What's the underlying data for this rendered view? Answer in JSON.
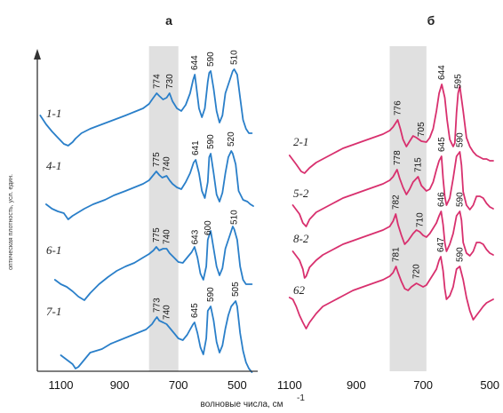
{
  "figure": {
    "xlabel": "волновые числа, см",
    "xlabel_sup": "-1",
    "ylabel": "оптическая плотность, усл. един."
  },
  "chart_data": [
    {
      "type": "line",
      "panel_label": "а",
      "color": "#2a7fc9",
      "band": "#e0e0e0",
      "xlim": [
        1180,
        430
      ],
      "xticks": [
        1100,
        900,
        700,
        500
      ],
      "shaded_region": [
        800,
        700
      ],
      "series": [
        {
          "name": "1-1",
          "offset": 0,
          "x": [
            1170,
            1150,
            1130,
            1110,
            1090,
            1075,
            1060,
            1050,
            1030,
            1000,
            960,
            920,
            880,
            850,
            820,
            800,
            785,
            774,
            765,
            752,
            740,
            730,
            720,
            705,
            690,
            675,
            660,
            650,
            644,
            640,
            630,
            620,
            610,
            600,
            595,
            590,
            580,
            570,
            560,
            550,
            540,
            525,
            515,
            510,
            500,
            490,
            480,
            470,
            460,
            450
          ],
          "y": [
            20,
            10,
            2,
            -5,
            -12,
            -14,
            -10,
            -6,
            0,
            5,
            10,
            15,
            20,
            24,
            28,
            33,
            40,
            45,
            42,
            38,
            40,
            45,
            36,
            28,
            25,
            32,
            45,
            60,
            66,
            55,
            28,
            18,
            28,
            58,
            68,
            70,
            50,
            25,
            12,
            20,
            45,
            60,
            70,
            72,
            66,
            40,
            15,
            5,
            0,
            0
          ]
        },
        {
          "name": "4-1",
          "offset": -85,
          "x": [
            1150,
            1130,
            1110,
            1090,
            1075,
            1060,
            1040,
            1020,
            990,
            950,
            920,
            880,
            850,
            820,
            800,
            790,
            775,
            765,
            755,
            740,
            730,
            720,
            705,
            690,
            675,
            660,
            648,
            641,
            630,
            620,
            610,
            600,
            595,
            590,
            580,
            570,
            560,
            550,
            540,
            530,
            520,
            515,
            505,
            495,
            480,
            465,
            455,
            445
          ],
          "y": [
            5,
            0,
            -3,
            -5,
            -12,
            -8,
            -4,
            0,
            5,
            10,
            15,
            20,
            24,
            28,
            32,
            36,
            42,
            38,
            35,
            37,
            32,
            28,
            24,
            22,
            30,
            40,
            52,
            55,
            40,
            20,
            12,
            30,
            58,
            62,
            40,
            16,
            8,
            18,
            40,
            58,
            65,
            62,
            50,
            20,
            10,
            8,
            5,
            3
          ]
        },
        {
          "name": "6-1",
          "offset": -170,
          "x": [
            1120,
            1100,
            1080,
            1060,
            1040,
            1020,
            1000,
            970,
            940,
            910,
            880,
            850,
            820,
            800,
            785,
            775,
            765,
            752,
            740,
            730,
            715,
            700,
            685,
            670,
            655,
            645,
            635,
            625,
            615,
            605,
            600,
            590,
            580,
            570,
            560,
            550,
            540,
            525,
            515,
            510,
            500,
            490,
            480,
            470,
            460,
            450
          ],
          "y": [
            5,
            0,
            -3,
            -8,
            -14,
            -18,
            -10,
            0,
            8,
            15,
            20,
            24,
            30,
            34,
            38,
            42,
            38,
            40,
            40,
            35,
            30,
            25,
            24,
            30,
            36,
            42,
            30,
            12,
            5,
            20,
            50,
            60,
            40,
            20,
            10,
            18,
            40,
            55,
            65,
            62,
            50,
            20,
            5,
            0,
            0,
            0
          ]
        },
        {
          "name": "7-1",
          "offset": -255,
          "x": [
            1100,
            1080,
            1060,
            1050,
            1040,
            1030,
            1020,
            1010,
            1000,
            980,
            960,
            930,
            900,
            870,
            840,
            810,
            790,
            780,
            773,
            765,
            752,
            740,
            730,
            715,
            700,
            685,
            670,
            660,
            650,
            645,
            635,
            625,
            615,
            605,
            600,
            590,
            580,
            570,
            560,
            550,
            540,
            530,
            520,
            510,
            505,
            500,
            490,
            480,
            470,
            460,
            450
          ],
          "y": [
            5,
            0,
            -5,
            -10,
            -8,
            -4,
            0,
            4,
            8,
            10,
            12,
            18,
            22,
            26,
            30,
            34,
            40,
            45,
            48,
            44,
            42,
            40,
            36,
            30,
            24,
            22,
            28,
            34,
            40,
            42,
            30,
            14,
            6,
            24,
            55,
            60,
            44,
            20,
            8,
            16,
            35,
            50,
            60,
            64,
            66,
            60,
            30,
            10,
            -3,
            -10,
            -14
          ]
        }
      ],
      "peak_labels": [
        {
          "series": 0,
          "x": 774,
          "text": "774"
        },
        {
          "series": 0,
          "x": 730,
          "text": "730"
        },
        {
          "series": 0,
          "x": 644,
          "text": "644"
        },
        {
          "series": 0,
          "x": 590,
          "text": "590"
        },
        {
          "series": 0,
          "x": 510,
          "text": "510"
        },
        {
          "series": 1,
          "x": 775,
          "text": "775"
        },
        {
          "series": 1,
          "x": 740,
          "text": "740"
        },
        {
          "series": 1,
          "x": 641,
          "text": "641"
        },
        {
          "series": 1,
          "x": 590,
          "text": "590"
        },
        {
          "series": 1,
          "x": 520,
          "text": "520"
        },
        {
          "series": 2,
          "x": 775,
          "text": "775"
        },
        {
          "series": 2,
          "x": 740,
          "text": "740"
        },
        {
          "series": 2,
          "x": 643,
          "text": "643"
        },
        {
          "series": 2,
          "x": 600,
          "text": "600"
        },
        {
          "series": 2,
          "x": 510,
          "text": "510"
        },
        {
          "series": 3,
          "x": 773,
          "text": "773"
        },
        {
          "series": 3,
          "x": 740,
          "text": "740"
        },
        {
          "series": 3,
          "x": 645,
          "text": "645"
        },
        {
          "series": 3,
          "x": 590,
          "text": "590"
        },
        {
          "series": 3,
          "x": 505,
          "text": "505"
        }
      ]
    },
    {
      "type": "line",
      "panel_label": "б",
      "color": "#d8306e",
      "band": "#e0e0e0",
      "xlim": [
        1110,
        490
      ],
      "xticks": [
        1100,
        900,
        700,
        500
      ],
      "shaded_region": [
        800,
        690
      ],
      "series": [
        {
          "name": "2-1",
          "offset": 0,
          "x": [
            1100,
            1080,
            1065,
            1055,
            1040,
            1020,
            1000,
            970,
            940,
            910,
            880,
            850,
            820,
            800,
            790,
            776,
            768,
            760,
            750,
            740,
            730,
            720,
            705,
            690,
            680,
            670,
            660,
            652,
            644,
            635,
            628,
            620,
            610,
            605,
            600,
            595,
            590,
            580,
            570,
            560,
            550,
            540,
            530,
            520,
            510,
            500,
            490
          ],
          "y": [
            10,
            0,
            -8,
            -10,
            -4,
            2,
            6,
            12,
            18,
            22,
            26,
            30,
            34,
            38,
            42,
            50,
            40,
            28,
            20,
            26,
            32,
            30,
            26,
            25,
            30,
            40,
            60,
            80,
            90,
            75,
            50,
            28,
            20,
            24,
            58,
            80,
            88,
            60,
            30,
            20,
            14,
            10,
            8,
            6,
            6,
            4,
            4
          ]
        },
        {
          "name": "5-2",
          "offset": -56,
          "x": [
            1090,
            1070,
            1060,
            1050,
            1040,
            1020,
            1000,
            970,
            940,
            910,
            880,
            850,
            820,
            800,
            790,
            778,
            770,
            760,
            750,
            740,
            730,
            715,
            705,
            690,
            680,
            670,
            660,
            652,
            645,
            640,
            635,
            630,
            620,
            610,
            600,
            590,
            585,
            580,
            570,
            560,
            550,
            540,
            530,
            520,
            510,
            500,
            490
          ],
          "y": [
            10,
            0,
            -10,
            -14,
            -6,
            2,
            6,
            12,
            18,
            22,
            26,
            30,
            34,
            38,
            42,
            50,
            40,
            30,
            22,
            28,
            36,
            42,
            32,
            26,
            28,
            36,
            50,
            60,
            65,
            40,
            20,
            10,
            18,
            40,
            65,
            70,
            55,
            25,
            10,
            5,
            10,
            20,
            20,
            18,
            12,
            8,
            6
          ]
        },
        {
          "name": "8-2",
          "offset": -108,
          "x": [
            1090,
            1070,
            1060,
            1055,
            1050,
            1040,
            1020,
            1000,
            970,
            940,
            910,
            880,
            850,
            820,
            800,
            790,
            782,
            775,
            765,
            755,
            745,
            730,
            720,
            710,
            700,
            690,
            680,
            670,
            660,
            652,
            646,
            640,
            635,
            630,
            620,
            610,
            600,
            590,
            585,
            580,
            570,
            560,
            550,
            540,
            530,
            520,
            510,
            500,
            490
          ],
          "y": [
            10,
            0,
            -10,
            -20,
            -18,
            -8,
            0,
            6,
            12,
            18,
            22,
            26,
            30,
            34,
            38,
            44,
            52,
            40,
            28,
            18,
            22,
            30,
            34,
            32,
            28,
            26,
            30,
            36,
            42,
            50,
            55,
            40,
            20,
            10,
            18,
            30,
            50,
            55,
            45,
            20,
            8,
            5,
            10,
            20,
            20,
            18,
            12,
            8,
            6
          ]
        },
        {
          "name": "62",
          "offset": -160,
          "x": [
            1100,
            1090,
            1080,
            1070,
            1060,
            1050,
            1040,
            1020,
            1000,
            970,
            940,
            910,
            880,
            850,
            820,
            800,
            790,
            781,
            775,
            765,
            755,
            745,
            735,
            720,
            710,
            700,
            690,
            680,
            670,
            660,
            652,
            647,
            640,
            635,
            630,
            620,
            610,
            600,
            590,
            580,
            570,
            560,
            550,
            540,
            530,
            520,
            510,
            500,
            490
          ],
          "y": [
            10,
            8,
            0,
            -10,
            -18,
            -25,
            -18,
            -8,
            0,
            6,
            12,
            18,
            22,
            26,
            30,
            34,
            38,
            45,
            38,
            28,
            20,
            18,
            22,
            26,
            24,
            22,
            24,
            30,
            36,
            42,
            52,
            56,
            40,
            20,
            8,
            12,
            22,
            42,
            45,
            30,
            10,
            -5,
            -15,
            -10,
            -5,
            0,
            4,
            6,
            8
          ]
        }
      ],
      "peak_labels": [
        {
          "series": 0,
          "x": 776,
          "text": "776"
        },
        {
          "series": 0,
          "x": 705,
          "text": "705"
        },
        {
          "series": 0,
          "x": 644,
          "text": "644"
        },
        {
          "series": 0,
          "x": 595,
          "text": "595"
        },
        {
          "series": 1,
          "x": 778,
          "text": "778"
        },
        {
          "series": 1,
          "x": 715,
          "text": "715"
        },
        {
          "series": 1,
          "x": 645,
          "text": "645"
        },
        {
          "series": 1,
          "x": 590,
          "text": "590"
        },
        {
          "series": 2,
          "x": 782,
          "text": "782"
        },
        {
          "series": 2,
          "x": 710,
          "text": "710"
        },
        {
          "series": 2,
          "x": 646,
          "text": "646"
        },
        {
          "series": 2,
          "x": 590,
          "text": "590"
        },
        {
          "series": 3,
          "x": 781,
          "text": "781"
        },
        {
          "series": 3,
          "x": 720,
          "text": "720"
        },
        {
          "series": 3,
          "x": 647,
          "text": "647"
        },
        {
          "series": 3,
          "x": 590,
          "text": "590"
        }
      ]
    }
  ]
}
